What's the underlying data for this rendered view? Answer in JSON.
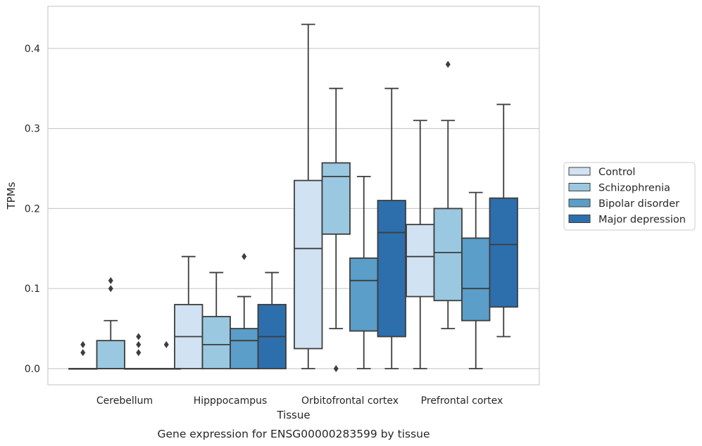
{
  "caption": "Gene expression for ENSG00000283599 by tissue",
  "chart_data": {
    "type": "boxplot",
    "xlabel": "Tissue",
    "ylabel": "TPMs",
    "ylim": [
      -0.021,
      0.451
    ],
    "yticks": [
      {
        "value": 0.0,
        "label": "0.0"
      },
      {
        "value": 0.1,
        "label": "0.1"
      },
      {
        "value": 0.2,
        "label": "0.2"
      },
      {
        "value": 0.3,
        "label": "0.3"
      },
      {
        "value": 0.4,
        "label": "0.4"
      }
    ],
    "grid": "horizontal",
    "legend_position": "right",
    "categories": [
      "Cerebellum",
      "Hipppocampus",
      "Orbitofrontal cortex",
      "Prefrontal cortex"
    ],
    "series": [
      {
        "name": "Control",
        "color": "#d1e2f2",
        "boxes": [
          {
            "min": 0,
            "q1": 0,
            "median": 0,
            "q3": 0,
            "max": 0,
            "outliers": [
              0.02,
              0.03
            ]
          },
          {
            "min": 0,
            "q1": 0,
            "median": 0.04,
            "q3": 0.08,
            "max": 0.14,
            "outliers": []
          },
          {
            "min": 0,
            "q1": 0.025,
            "median": 0.15,
            "q3": 0.235,
            "max": 0.43,
            "outliers": []
          },
          {
            "min": 0,
            "q1": 0.09,
            "median": 0.14,
            "q3": 0.18,
            "max": 0.31,
            "outliers": []
          }
        ]
      },
      {
        "name": "Schizophrenia",
        "color": "#9ac8e0",
        "boxes": [
          {
            "min": 0,
            "q1": 0,
            "median": 0,
            "q3": 0.035,
            "max": 0.06,
            "outliers": [
              0.1,
              0.11
            ]
          },
          {
            "min": 0,
            "q1": 0,
            "median": 0.03,
            "q3": 0.065,
            "max": 0.12,
            "outliers": []
          },
          {
            "min": 0.05,
            "q1": 0.168,
            "median": 0.24,
            "q3": 0.257,
            "max": 0.35,
            "outliers": [
              0.0
            ]
          },
          {
            "min": 0.05,
            "q1": 0.085,
            "median": 0.145,
            "q3": 0.2,
            "max": 0.31,
            "outliers": [
              0.38
            ]
          }
        ]
      },
      {
        "name": "Bipolar disorder",
        "color": "#5a9ec9",
        "boxes": [
          {
            "min": 0,
            "q1": 0,
            "median": 0,
            "q3": 0,
            "max": 0,
            "outliers": [
              0.02,
              0.03,
              0.04
            ]
          },
          {
            "min": 0,
            "q1": 0,
            "median": 0.035,
            "q3": 0.05,
            "max": 0.09,
            "outliers": [
              0.14
            ]
          },
          {
            "min": 0,
            "q1": 0.047,
            "median": 0.11,
            "q3": 0.138,
            "max": 0.24,
            "outliers": []
          },
          {
            "min": 0,
            "q1": 0.06,
            "median": 0.1,
            "q3": 0.163,
            "max": 0.22,
            "outliers": []
          }
        ]
      },
      {
        "name": "Major depression",
        "color": "#2d6fad",
        "boxes": [
          {
            "min": 0,
            "q1": 0,
            "median": 0,
            "q3": 0,
            "max": 0,
            "outliers": [
              0.03
            ]
          },
          {
            "min": 0,
            "q1": 0,
            "median": 0.04,
            "q3": 0.08,
            "max": 0.12,
            "outliers": []
          },
          {
            "min": 0,
            "q1": 0.04,
            "median": 0.17,
            "q3": 0.21,
            "max": 0.35,
            "outliers": []
          },
          {
            "min": 0.04,
            "q1": 0.077,
            "median": 0.155,
            "q3": 0.213,
            "max": 0.33,
            "outliers": []
          }
        ]
      }
    ]
  }
}
